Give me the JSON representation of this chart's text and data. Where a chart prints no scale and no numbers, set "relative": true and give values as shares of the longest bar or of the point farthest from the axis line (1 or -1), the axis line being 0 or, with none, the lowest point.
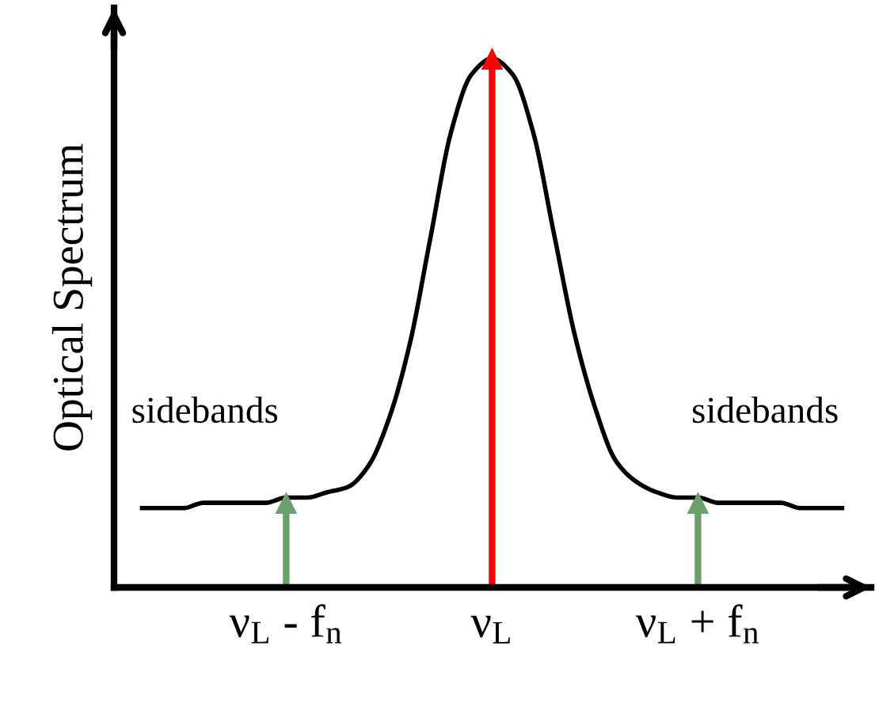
{
  "chart_data": {
    "type": "line",
    "relative": true,
    "ylabel": "Optical Spectrum",
    "categories": [
      null,
      null,
      null,
      null,
      null,
      null,
      null,
      "ν$_{L}$ - f$_{n}$",
      null,
      null,
      null,
      null,
      null,
      null,
      null,
      null,
      null,
      "ν$_{L}$",
      null,
      null,
      null,
      null,
      null,
      null,
      null,
      null,
      null,
      "ν$_{L}$ + f$_{n}$",
      null,
      null,
      null,
      null,
      null,
      null,
      null
    ],
    "series": [
      {
        "color": "#000000",
        "values": [
          0.15,
          0.15,
          0.15,
          0.16,
          0.16,
          0.16,
          0.16,
          0.17,
          0.17,
          0.18,
          0.19,
          0.23,
          0.32,
          0.46,
          0.66,
          0.86,
          0.97,
          1.0,
          0.97,
          0.86,
          0.67,
          0.48,
          0.34,
          0.24,
          0.2,
          0.18,
          0.17,
          0.17,
          0.16,
          0.16,
          0.16,
          0.16,
          0.15,
          0.15,
          0.15
        ]
      },
      {
        "type": "lollipop",
        "marker": "triangle",
        "colors": [
          null,
          null,
          null,
          null,
          null,
          null,
          null,
          "#6a9e6a",
          null,
          null,
          null,
          null,
          null,
          null,
          null,
          null,
          null,
          "#ff0000",
          null,
          null,
          null,
          null,
          null,
          null,
          null,
          null,
          null,
          "#6a9e6a",
          null,
          null,
          null,
          null,
          null,
          null,
          null
        ],
        "values": [
          null,
          null,
          null,
          null,
          null,
          null,
          null,
          0.16,
          null,
          null,
          null,
          null,
          null,
          null,
          null,
          null,
          null,
          1.0,
          null,
          null,
          null,
          null,
          null,
          null,
          null,
          null,
          null,
          0.16,
          null,
          null,
          null,
          null,
          null,
          null,
          null
        ]
      }
    ],
    "annotations": [
      "sidebands",
      "sidebands"
    ],
    "grid": false,
    "legend": false
  }
}
